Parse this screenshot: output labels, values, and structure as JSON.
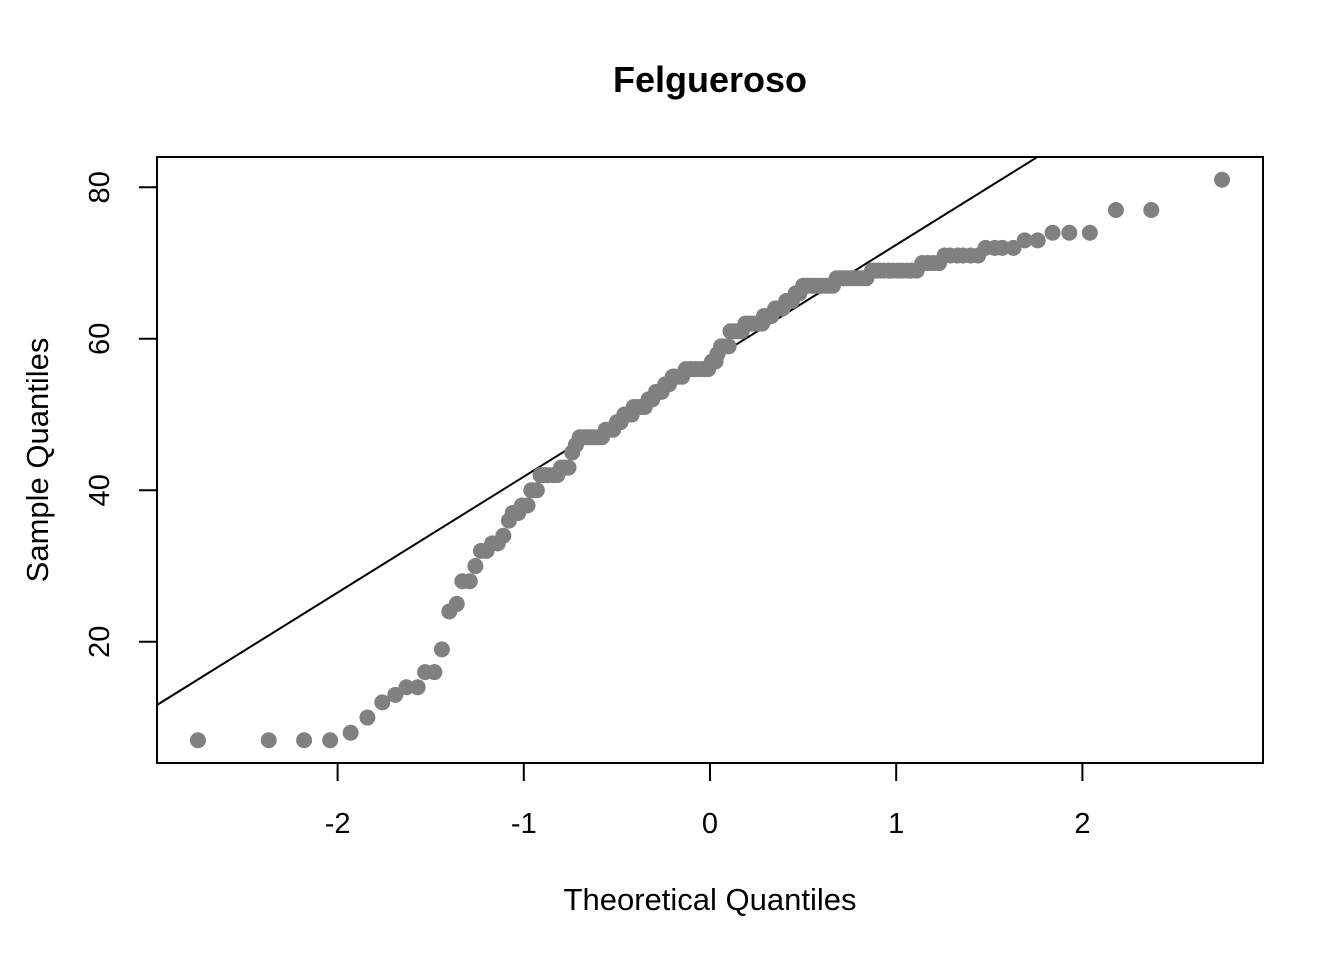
{
  "chart_data": {
    "type": "scatter",
    "title": "Felgueroso",
    "xlabel": "Theoretical Quantiles",
    "ylabel": "Sample Quantiles",
    "xlim": [
      -2.97,
      2.97
    ],
    "ylim": [
      4,
      84
    ],
    "x_ticks": [
      -2,
      -1,
      0,
      1,
      2
    ],
    "x_tick_labels": [
      "-2",
      "-1",
      "0",
      "1",
      "2"
    ],
    "y_ticks": [
      20,
      40,
      60,
      80
    ],
    "y_tick_labels": [
      "20",
      "40",
      "60",
      "80"
    ],
    "point_color": "#808080",
    "line_color": "#000000",
    "grid": false,
    "legend": "none",
    "reference_line": {
      "intercept": 57.1,
      "slope": 15.3
    },
    "points": [
      [
        -2.75,
        7
      ],
      [
        -2.37,
        7
      ],
      [
        -2.18,
        7
      ],
      [
        -2.04,
        7
      ],
      [
        -1.93,
        8
      ],
      [
        -1.84,
        10
      ],
      [
        -1.76,
        12
      ],
      [
        -1.69,
        13
      ],
      [
        -1.63,
        14
      ],
      [
        -1.57,
        14
      ],
      [
        -1.53,
        16
      ],
      [
        -1.48,
        16
      ],
      [
        -1.44,
        19
      ],
      [
        -1.4,
        24
      ],
      [
        -1.36,
        25
      ],
      [
        -1.33,
        28
      ],
      [
        -1.29,
        28
      ],
      [
        -1.26,
        30
      ],
      [
        -1.23,
        32
      ],
      [
        -1.2,
        32
      ],
      [
        -1.17,
        33
      ],
      [
        -1.14,
        33
      ],
      [
        -1.11,
        34
      ],
      [
        -1.08,
        36
      ],
      [
        -1.06,
        37
      ],
      [
        -1.03,
        37
      ],
      [
        -1.01,
        38
      ],
      [
        -0.98,
        38
      ],
      [
        -0.96,
        40
      ],
      [
        -0.93,
        40
      ],
      [
        -0.91,
        42
      ],
      [
        -0.89,
        42
      ],
      [
        -0.87,
        42
      ],
      [
        -0.84,
        42
      ],
      [
        -0.82,
        42
      ],
      [
        -0.8,
        43
      ],
      [
        -0.78,
        43
      ],
      [
        -0.76,
        43
      ],
      [
        -0.74,
        45
      ],
      [
        -0.72,
        46
      ],
      [
        -0.7,
        47
      ],
      [
        -0.68,
        47
      ],
      [
        -0.66,
        47
      ],
      [
        -0.64,
        47
      ],
      [
        -0.62,
        47
      ],
      [
        -0.6,
        47
      ],
      [
        -0.58,
        47
      ],
      [
        -0.56,
        48
      ],
      [
        -0.54,
        48
      ],
      [
        -0.52,
        48
      ],
      [
        -0.5,
        49
      ],
      [
        -0.48,
        49
      ],
      [
        -0.46,
        50
      ],
      [
        -0.44,
        50
      ],
      [
        -0.42,
        50
      ],
      [
        -0.41,
        51
      ],
      [
        -0.39,
        51
      ],
      [
        -0.37,
        51
      ],
      [
        -0.35,
        51
      ],
      [
        -0.33,
        52
      ],
      [
        -0.31,
        52
      ],
      [
        -0.29,
        53
      ],
      [
        -0.28,
        53
      ],
      [
        -0.26,
        53
      ],
      [
        -0.24,
        54
      ],
      [
        -0.22,
        54
      ],
      [
        -0.2,
        55
      ],
      [
        -0.19,
        55
      ],
      [
        -0.17,
        55
      ],
      [
        -0.15,
        55
      ],
      [
        -0.13,
        56
      ],
      [
        -0.11,
        56
      ],
      [
        -0.1,
        56
      ],
      [
        -0.08,
        56
      ],
      [
        -0.06,
        56
      ],
      [
        -0.04,
        56
      ],
      [
        -0.03,
        56
      ],
      [
        -0.01,
        56
      ],
      [
        0.01,
        57
      ],
      [
        0.03,
        57
      ],
      [
        0.04,
        58
      ],
      [
        0.06,
        59
      ],
      [
        0.08,
        59
      ],
      [
        0.1,
        59
      ],
      [
        0.11,
        61
      ],
      [
        0.13,
        61
      ],
      [
        0.15,
        61
      ],
      [
        0.17,
        61
      ],
      [
        0.19,
        62
      ],
      [
        0.2,
        62
      ],
      [
        0.22,
        62
      ],
      [
        0.24,
        62
      ],
      [
        0.26,
        62
      ],
      [
        0.28,
        62
      ],
      [
        0.29,
        63
      ],
      [
        0.31,
        63
      ],
      [
        0.33,
        63
      ],
      [
        0.35,
        64
      ],
      [
        0.37,
        64
      ],
      [
        0.39,
        64
      ],
      [
        0.41,
        65
      ],
      [
        0.42,
        65
      ],
      [
        0.44,
        65
      ],
      [
        0.46,
        66
      ],
      [
        0.48,
        66
      ],
      [
        0.5,
        67
      ],
      [
        0.52,
        67
      ],
      [
        0.54,
        67
      ],
      [
        0.56,
        67
      ],
      [
        0.58,
        67
      ],
      [
        0.6,
        67
      ],
      [
        0.62,
        67
      ],
      [
        0.64,
        67
      ],
      [
        0.66,
        67
      ],
      [
        0.68,
        68
      ],
      [
        0.7,
        68
      ],
      [
        0.72,
        68
      ],
      [
        0.74,
        68
      ],
      [
        0.76,
        68
      ],
      [
        0.78,
        68
      ],
      [
        0.8,
        68
      ],
      [
        0.82,
        68
      ],
      [
        0.84,
        68
      ],
      [
        0.87,
        69
      ],
      [
        0.89,
        69
      ],
      [
        0.91,
        69
      ],
      [
        0.93,
        69
      ],
      [
        0.96,
        69
      ],
      [
        0.98,
        69
      ],
      [
        1.01,
        69
      ],
      [
        1.03,
        69
      ],
      [
        1.06,
        69
      ],
      [
        1.08,
        69
      ],
      [
        1.11,
        69
      ],
      [
        1.14,
        70
      ],
      [
        1.17,
        70
      ],
      [
        1.2,
        70
      ],
      [
        1.23,
        70
      ],
      [
        1.26,
        71
      ],
      [
        1.29,
        71
      ],
      [
        1.33,
        71
      ],
      [
        1.36,
        71
      ],
      [
        1.4,
        71
      ],
      [
        1.44,
        71
      ],
      [
        1.48,
        72
      ],
      [
        1.53,
        72
      ],
      [
        1.57,
        72
      ],
      [
        1.63,
        72
      ],
      [
        1.69,
        73
      ],
      [
        1.76,
        73
      ],
      [
        1.84,
        74
      ],
      [
        1.93,
        74
      ],
      [
        2.04,
        74
      ],
      [
        2.18,
        77
      ],
      [
        2.37,
        77
      ],
      [
        2.75,
        81
      ]
    ]
  }
}
